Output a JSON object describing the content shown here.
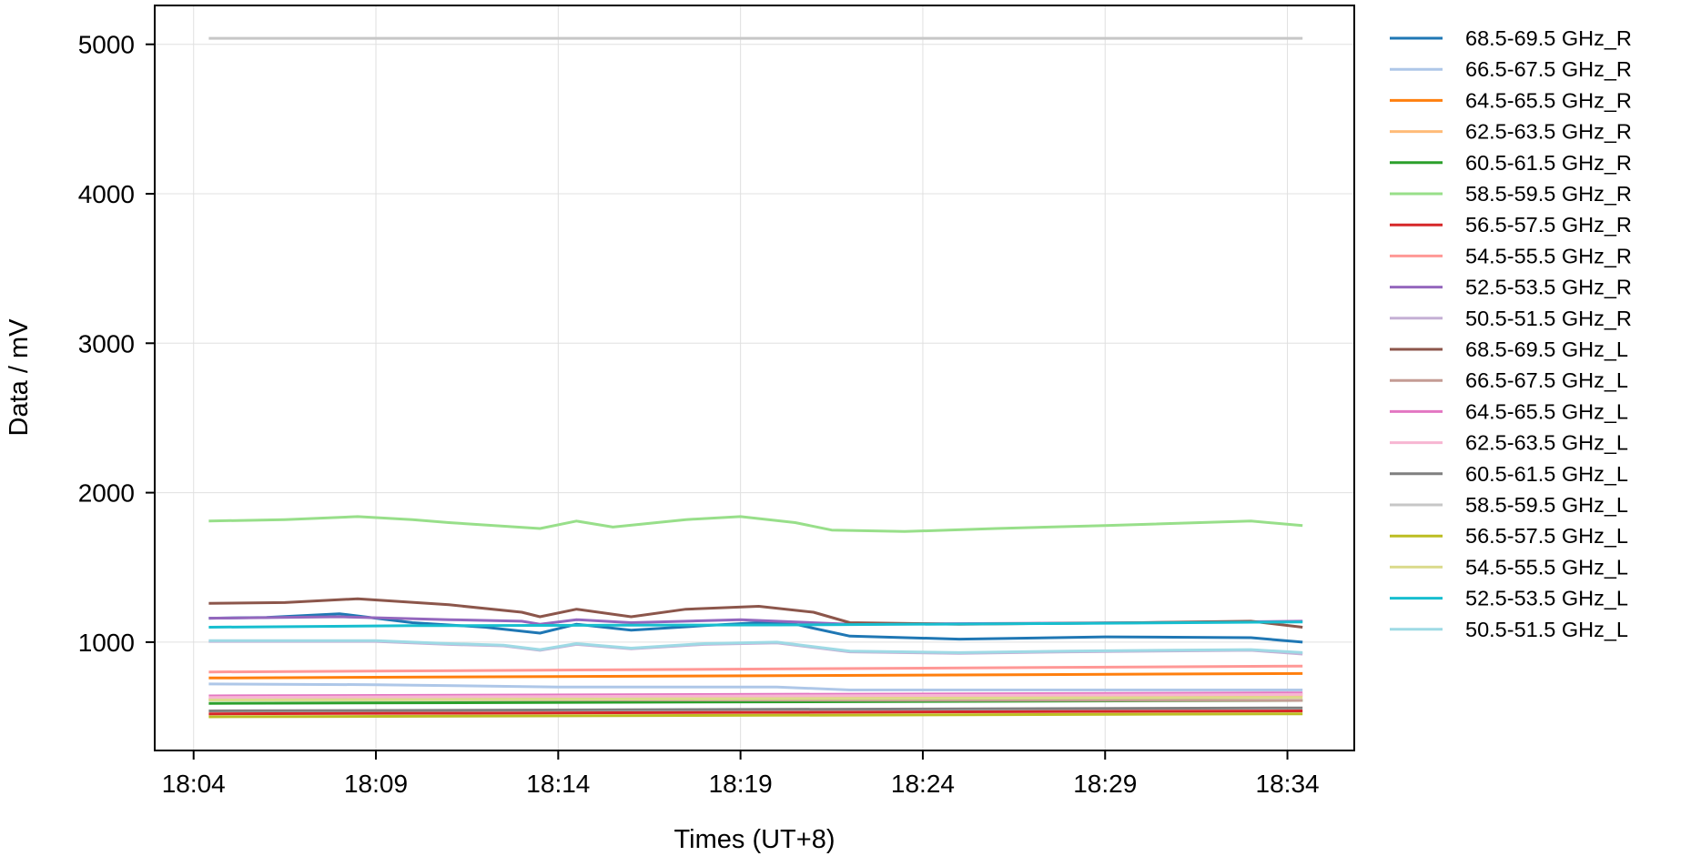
{
  "chart_data": {
    "type": "line",
    "title": "",
    "xlabel": "Times (UT+8)",
    "ylabel": "Data / mV",
    "xlim": [
      "18:02:56",
      "18:35:50"
    ],
    "ylim": [
      275,
      5260
    ],
    "xticks": [
      "18:04",
      "18:09",
      "18:14",
      "18:19",
      "18:24",
      "18:29",
      "18:34"
    ],
    "yticks": [
      1000,
      2000,
      3000,
      4000,
      5000
    ],
    "grid": true,
    "legend_position": "outside-right",
    "series": [
      {
        "name": "68.5-69.5 GHz_R",
        "color": "#1f77b4",
        "points": [
          [
            "18:04:25",
            1160
          ],
          [
            "18:06:00",
            1165
          ],
          [
            "18:08:00",
            1190
          ],
          [
            "18:10:00",
            1130
          ],
          [
            "18:12:00",
            1100
          ],
          [
            "18:13:30",
            1060
          ],
          [
            "18:14:30",
            1120
          ],
          [
            "18:16:00",
            1080
          ],
          [
            "18:18:00",
            1110
          ],
          [
            "18:19:30",
            1130
          ],
          [
            "18:20:30",
            1120
          ],
          [
            "18:22:00",
            1040
          ],
          [
            "18:25:00",
            1020
          ],
          [
            "18:29:00",
            1035
          ],
          [
            "18:33:00",
            1030
          ],
          [
            "18:34:25",
            1000
          ]
        ]
      },
      {
        "name": "66.5-67.5 GHz_R",
        "color": "#aec7e8",
        "points": [
          [
            "18:04:25",
            720
          ],
          [
            "18:09:00",
            715
          ],
          [
            "18:14:00",
            700
          ],
          [
            "18:20:00",
            700
          ],
          [
            "18:22:00",
            680
          ],
          [
            "18:34:25",
            680
          ]
        ]
      },
      {
        "name": "64.5-65.5 GHz_R",
        "color": "#ff7f0e",
        "points": [
          [
            "18:04:25",
            760
          ],
          [
            "18:34:25",
            790
          ]
        ]
      },
      {
        "name": "62.5-63.5 GHz_R",
        "color": "#ffbb78",
        "points": [
          [
            "18:04:25",
            620
          ],
          [
            "18:34:25",
            640
          ]
        ]
      },
      {
        "name": "60.5-61.5 GHz_R",
        "color": "#2ca02c",
        "points": [
          [
            "18:04:25",
            590
          ],
          [
            "18:34:25",
            610
          ]
        ]
      },
      {
        "name": "58.5-59.5 GHz_R",
        "color": "#98df8a",
        "points": [
          [
            "18:04:25",
            1810
          ],
          [
            "18:06:30",
            1820
          ],
          [
            "18:08:30",
            1840
          ],
          [
            "18:10:00",
            1820
          ],
          [
            "18:11:00",
            1800
          ],
          [
            "18:13:30",
            1760
          ],
          [
            "18:14:30",
            1810
          ],
          [
            "18:15:30",
            1770
          ],
          [
            "18:17:30",
            1820
          ],
          [
            "18:19:00",
            1840
          ],
          [
            "18:20:30",
            1800
          ],
          [
            "18:21:30",
            1750
          ],
          [
            "18:23:30",
            1740
          ],
          [
            "18:26:00",
            1760
          ],
          [
            "18:29:00",
            1780
          ],
          [
            "18:33:00",
            1810
          ],
          [
            "18:34:25",
            1780
          ]
        ]
      },
      {
        "name": "56.5-57.5 GHz_R",
        "color": "#d62728",
        "points": [
          [
            "18:04:25",
            520
          ],
          [
            "18:34:25",
            540
          ]
        ]
      },
      {
        "name": "54.5-55.5 GHz_R",
        "color": "#ff9896",
        "points": [
          [
            "18:04:25",
            800
          ],
          [
            "18:34:25",
            840
          ]
        ]
      },
      {
        "name": "52.5-53.5 GHz_R",
        "color": "#9467bd",
        "points": [
          [
            "18:04:25",
            1160
          ],
          [
            "18:08:00",
            1170
          ],
          [
            "18:11:00",
            1150
          ],
          [
            "18:13:00",
            1140
          ],
          [
            "18:13:30",
            1120
          ],
          [
            "18:14:30",
            1150
          ],
          [
            "18:16:00",
            1130
          ],
          [
            "18:19:00",
            1150
          ],
          [
            "18:22:00",
            1120
          ],
          [
            "18:30:00",
            1130
          ],
          [
            "18:34:25",
            1140
          ]
        ]
      },
      {
        "name": "50.5-51.5 GHz_R",
        "color": "#c5b0d5",
        "points": [
          [
            "18:04:25",
            1005
          ],
          [
            "18:09:00",
            1005
          ],
          [
            "18:11:00",
            985
          ],
          [
            "18:12:30",
            975
          ],
          [
            "18:13:30",
            945
          ],
          [
            "18:14:30",
            985
          ],
          [
            "18:16:00",
            955
          ],
          [
            "18:18:00",
            985
          ],
          [
            "18:20:00",
            995
          ],
          [
            "18:22:00",
            935
          ],
          [
            "18:25:00",
            925
          ],
          [
            "18:28:00",
            935
          ],
          [
            "18:33:00",
            945
          ],
          [
            "18:34:25",
            920
          ]
        ]
      },
      {
        "name": "68.5-69.5 GHz_L",
        "color": "#8c564b",
        "points": [
          [
            "18:04:25",
            1260
          ],
          [
            "18:06:30",
            1265
          ],
          [
            "18:08:30",
            1290
          ],
          [
            "18:11:00",
            1250
          ],
          [
            "18:13:00",
            1200
          ],
          [
            "18:13:30",
            1170
          ],
          [
            "18:14:30",
            1220
          ],
          [
            "18:16:00",
            1170
          ],
          [
            "18:17:30",
            1220
          ],
          [
            "18:19:30",
            1240
          ],
          [
            "18:21:00",
            1200
          ],
          [
            "18:22:00",
            1130
          ],
          [
            "18:25:00",
            1120
          ],
          [
            "18:30:00",
            1130
          ],
          [
            "18:33:00",
            1140
          ],
          [
            "18:34:25",
            1100
          ]
        ]
      },
      {
        "name": "66.5-67.5 GHz_L",
        "color": "#c49c94",
        "points": [
          [
            "18:04:25",
            615
          ],
          [
            "18:34:25",
            610
          ]
        ]
      },
      {
        "name": "64.5-65.5 GHz_L",
        "color": "#e377c2",
        "points": [
          [
            "18:04:25",
            640
          ],
          [
            "18:34:25",
            660
          ]
        ]
      },
      {
        "name": "62.5-63.5 GHz_L",
        "color": "#f7b6d2",
        "points": [
          [
            "18:04:25",
            630
          ],
          [
            "18:34:25",
            650
          ]
        ]
      },
      {
        "name": "60.5-61.5 GHz_L",
        "color": "#7f7f7f",
        "points": [
          [
            "18:04:25",
            540
          ],
          [
            "18:34:25",
            560
          ]
        ]
      },
      {
        "name": "58.5-59.5 GHz_L",
        "color": "#c7c7c7",
        "points": [
          [
            "18:04:25",
            5040
          ],
          [
            "18:34:25",
            5040
          ]
        ]
      },
      {
        "name": "56.5-57.5 GHz_L",
        "color": "#bcbd22",
        "points": [
          [
            "18:04:25",
            500
          ],
          [
            "18:34:25",
            520
          ]
        ]
      },
      {
        "name": "54.5-55.5 GHz_L",
        "color": "#dbdb8d",
        "points": [
          [
            "18:04:25",
            612
          ],
          [
            "18:34:25",
            630
          ]
        ]
      },
      {
        "name": "52.5-53.5 GHz_L",
        "color": "#17becf",
        "points": [
          [
            "18:04:25",
            1100
          ],
          [
            "18:10:00",
            1110
          ],
          [
            "18:20:00",
            1115
          ],
          [
            "18:28:00",
            1125
          ],
          [
            "18:34:25",
            1135
          ]
        ]
      },
      {
        "name": "50.5-51.5 GHz_L",
        "color": "#9edae5",
        "points": [
          [
            "18:04:25",
            1010
          ],
          [
            "18:09:00",
            1010
          ],
          [
            "18:11:00",
            990
          ],
          [
            "18:12:30",
            980
          ],
          [
            "18:13:30",
            950
          ],
          [
            "18:14:30",
            990
          ],
          [
            "18:16:00",
            960
          ],
          [
            "18:18:00",
            990
          ],
          [
            "18:20:00",
            1000
          ],
          [
            "18:22:00",
            940
          ],
          [
            "18:25:00",
            930
          ],
          [
            "18:28:00",
            940
          ],
          [
            "18:33:00",
            950
          ],
          [
            "18:34:25",
            930
          ]
        ]
      }
    ]
  }
}
